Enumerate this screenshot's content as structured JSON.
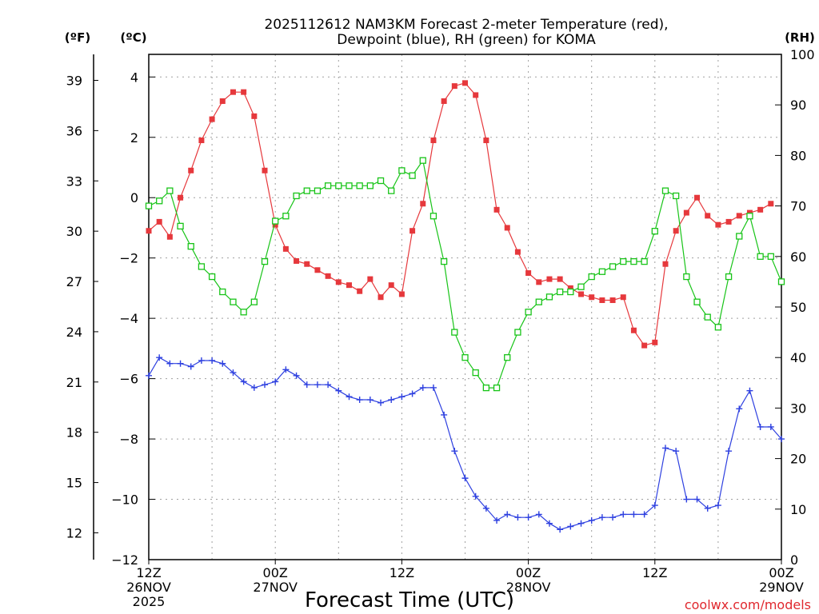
{
  "chart_data": {
    "type": "line",
    "title_line1": "2025112612 NAM3KM Forecast 2-meter Temperature (red),",
    "title_line2": "Dewpoint (blue), RH (green) for KOMA",
    "xlabel": "Forecast Time (UTC)",
    "credit": "coolwx.com/models",
    "unit_f": "(ºF)",
    "unit_c": "(ºC)",
    "unit_rh": "(RH)",
    "hours": [
      0,
      1,
      2,
      3,
      4,
      5,
      6,
      7,
      8,
      9,
      10,
      11,
      12,
      13,
      14,
      15,
      16,
      17,
      18,
      19,
      20,
      21,
      22,
      23,
      24,
      25,
      26,
      27,
      28,
      29,
      30,
      31,
      32,
      33,
      34,
      35,
      36,
      37,
      38,
      39,
      40,
      41,
      42,
      43,
      44,
      45,
      46,
      47,
      48,
      49,
      50,
      51,
      52,
      53,
      54,
      55,
      56,
      57,
      58,
      59,
      60
    ],
    "x_ticks": [
      {
        "hour": 0,
        "lines": [
          "12Z",
          "26NOV",
          "2025"
        ]
      },
      {
        "hour": 12,
        "lines": [
          "00Z",
          "27NOV"
        ]
      },
      {
        "hour": 24,
        "lines": [
          "12Z",
          ""
        ]
      },
      {
        "hour": 36,
        "lines": [
          "00Z",
          "28NOV"
        ]
      },
      {
        "hour": 48,
        "lines": [
          "12Z",
          ""
        ]
      },
      {
        "hour": 60,
        "lines": [
          "00Z",
          "29NOV"
        ]
      }
    ],
    "left_f_ticks": [
      "39",
      "36",
      "33",
      "30",
      "27",
      "24",
      "21",
      "18",
      "15",
      "12"
    ],
    "left_c_ticks": [
      "4",
      "2",
      "0",
      "−2",
      "−4",
      "−6",
      "−8",
      "−10",
      "−12"
    ],
    "right_rh_ticks": [
      "100",
      "90",
      "80",
      "70",
      "60",
      "50",
      "40",
      "30",
      "20",
      "10",
      "0"
    ],
    "y_range_c": [
      -12,
      4.75
    ],
    "y_range_rh": [
      0,
      100
    ],
    "series": [
      {
        "name": "Temperature",
        "unit": "C",
        "color": "#e6383c",
        "marker": "filled-square",
        "values": [
          -1.1,
          -0.8,
          -1.3,
          0,
          0.9,
          1.9,
          2.6,
          3.2,
          3.5,
          3.5,
          2.7,
          0.9,
          -0.9,
          -1.7,
          -2.1,
          -2.2,
          -2.4,
          -2.6,
          -2.8,
          -2.9,
          -3.1,
          -2.7,
          -3.3,
          -2.9,
          -3.2,
          -1.1,
          -0.2,
          1.9,
          3.2,
          3.7,
          3.8,
          3.4,
          1.9,
          -0.4,
          -1.0,
          -1.8,
          -2.5,
          -2.8,
          -2.7,
          -2.7,
          -3.0,
          -3.2,
          -3.3,
          -3.4,
          -3.4,
          -3.3,
          -4.4,
          -4.9,
          -4.8,
          -2.2,
          -1.1,
          -0.5,
          0,
          -0.6,
          -0.9,
          -0.8,
          -0.6,
          -0.5,
          -0.4,
          -0.2
        ]
      },
      {
        "name": "Dewpoint",
        "unit": "C",
        "color": "#2e40e0",
        "marker": "plus",
        "values": [
          -5.9,
          -5.3,
          -5.5,
          -5.5,
          -5.6,
          -5.4,
          -5.4,
          -5.5,
          -5.8,
          -6.1,
          -6.3,
          -6.2,
          -6.1,
          -5.7,
          -5.9,
          -6.2,
          -6.2,
          -6.2,
          -6.4,
          -6.6,
          -6.7,
          -6.7,
          -6.8,
          -6.7,
          -6.6,
          -6.5,
          -6.3,
          -6.3,
          -7.2,
          -8.4,
          -9.3,
          -9.9,
          -10.3,
          -10.7,
          -10.5,
          -10.6,
          -10.6,
          -10.5,
          -10.8,
          -11.0,
          -10.9,
          -10.8,
          -10.7,
          -10.6,
          -10.6,
          -10.5,
          -10.5,
          -10.5,
          -10.2,
          -8.3,
          -8.4,
          -10.0,
          -10.0,
          -10.3,
          -10.2,
          -8.4,
          -7.0,
          -6.4,
          -7.6,
          -7.6,
          -8.0
        ]
      },
      {
        "name": "RH",
        "unit": "%",
        "color": "#18c418",
        "marker": "open-square",
        "values": [
          70,
          71,
          73,
          66,
          62,
          58,
          56,
          53,
          51,
          49,
          51,
          59,
          67,
          68,
          72,
          73,
          73,
          74,
          74,
          74,
          74,
          74,
          75,
          73,
          77,
          76,
          79,
          68,
          59,
          45,
          40,
          37,
          34,
          34,
          40,
          45,
          49,
          51,
          52,
          53,
          53,
          54,
          56,
          57,
          58,
          59,
          59,
          59,
          65,
          73,
          72,
          56,
          51,
          48,
          46,
          56,
          64,
          68,
          60,
          60,
          55
        ]
      }
    ]
  }
}
